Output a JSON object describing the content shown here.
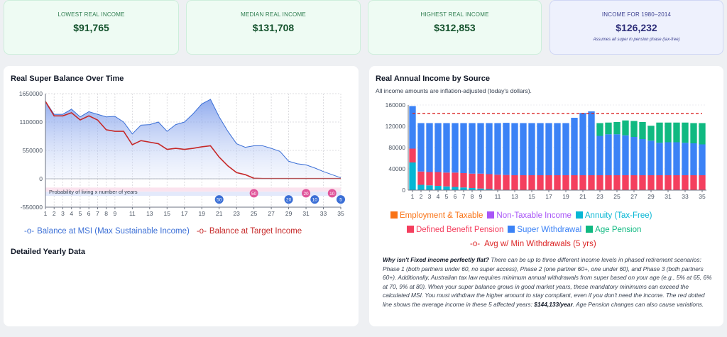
{
  "stats": [
    {
      "label": "LOWEST REAL INCOME",
      "value": "$91,765"
    },
    {
      "label": "MEDIAN REAL INCOME",
      "value": "$131,708"
    },
    {
      "label": "HIGHEST REAL INCOME",
      "value": "$312,853"
    },
    {
      "label": "INCOME FOR 1980–2014",
      "value": "$126,232",
      "note": "Assumes all super in pension phase (tax-free)"
    }
  ],
  "balance_panel": {
    "title": "Real Super Balance Over Time",
    "probability_label": "Probability of living x number of years",
    "legend_msi": "Balance at MSI (Max Sustainable Income)",
    "legend_target": "Balance at Target Income",
    "detailed_label": "Detailed Yearly Data"
  },
  "income_panel": {
    "title": "Real Annual Income by Source",
    "subtitle": "All income amounts are inflation-adjusted (today's dollars).",
    "legend": [
      {
        "name": "Employment & Taxable",
        "color": "#f97316"
      },
      {
        "name": "Non-Taxable Income",
        "color": "#a855f7"
      },
      {
        "name": "Annuity (Tax-Free)",
        "color": "#06b6d4"
      },
      {
        "name": "Defined Benefit Pension",
        "color": "#f43f5e"
      },
      {
        "name": "Super Withdrawal",
        "color": "#3b82f6"
      },
      {
        "name": "Age Pension",
        "color": "#10b981"
      }
    ],
    "avg_label": "Avg w/ Min Withdrawals (5 yrs)"
  },
  "explanation": {
    "heading": "Why isn't Fixed income perfectly flat?",
    "body1": " There can be up to three different income levels in phased retirement scenarios: Phase 1 (both partners under 60, no super access), Phase 2 (one partner 60+, one under 60), and Phase 3 (both partners 60+). Additionally, Australian tax law requires minimum annual withdrawals from super based on your age (e.g., 5% at 65, 6% at 70, 9% at 80). When your super balance grows in good market years, these mandatory minimums can exceed the calculated MSI. You must withdraw the higher amount to stay compliant, even if you don't need the income. The red dotted line shows the average income in these 5 affected years: ",
    "amount": "$144,133/year",
    "body2": ". Age Pension changes can also cause variations."
  },
  "chart_data": [
    {
      "type": "area",
      "title": "Real Super Balance Over Time",
      "x": [
        1,
        2,
        3,
        4,
        5,
        6,
        7,
        8,
        9,
        10,
        11,
        12,
        13,
        14,
        15,
        16,
        17,
        18,
        19,
        20,
        21,
        22,
        23,
        24,
        25,
        26,
        27,
        28,
        29,
        30,
        31,
        32,
        33,
        34,
        35
      ],
      "x_ticks": [
        1,
        2,
        3,
        4,
        5,
        6,
        7,
        8,
        9,
        11,
        13,
        15,
        17,
        19,
        21,
        23,
        25,
        27,
        29,
        31,
        33,
        35
      ],
      "ylim": [
        -550000,
        1650000
      ],
      "y_ticks": [
        1650000,
        1100000,
        550000,
        0,
        -550000
      ],
      "series": [
        {
          "name": "Balance at MSI (Max Sustainable Income)",
          "color": "#3b6fd6",
          "values": [
            1500000,
            1250000,
            1250000,
            1350000,
            1200000,
            1300000,
            1250000,
            1200000,
            1210000,
            1100000,
            870000,
            1040000,
            1050000,
            1100000,
            920000,
            1050000,
            1100000,
            1260000,
            1450000,
            1540000,
            1200000,
            920000,
            680000,
            610000,
            640000,
            640000,
            590000,
            530000,
            340000,
            290000,
            270000,
            210000,
            140000,
            80000,
            20000
          ]
        },
        {
          "name": "Balance at Target Income",
          "color": "#c62828",
          "values": [
            1500000,
            1220000,
            1220000,
            1280000,
            1140000,
            1220000,
            1140000,
            950000,
            920000,
            920000,
            660000,
            740000,
            710000,
            680000,
            570000,
            590000,
            570000,
            590000,
            620000,
            640000,
            420000,
            250000,
            120000,
            80000,
            10000,
            5000,
            5000,
            5000,
            5000,
            5000,
            5000,
            5000,
            5000,
            5000,
            5000
          ]
        }
      ],
      "probability_markers": [
        {
          "year": 21,
          "value": "50",
          "color": "#3b6fd6"
        },
        {
          "year": 25,
          "value": "50",
          "color": "#e0569b"
        },
        {
          "year": 29,
          "value": "20",
          "color": "#3b6fd6"
        },
        {
          "year": 31,
          "value": "20",
          "color": "#e0569b"
        },
        {
          "year": 32,
          "value": "10",
          "color": "#3b6fd6"
        },
        {
          "year": 34,
          "value": "10",
          "color": "#e0569b"
        },
        {
          "year": 35,
          "value": "5",
          "color": "#3b6fd6"
        }
      ]
    },
    {
      "type": "bar",
      "title": "Real Annual Income by Source",
      "categories": [
        1,
        2,
        3,
        4,
        5,
        6,
        7,
        8,
        9,
        10,
        11,
        12,
        13,
        14,
        15,
        16,
        17,
        18,
        19,
        20,
        21,
        22,
        23,
        24,
        25,
        26,
        27,
        28,
        29,
        30,
        31,
        32,
        33,
        34,
        35
      ],
      "x_ticks": [
        1,
        2,
        3,
        4,
        5,
        6,
        7,
        8,
        9,
        11,
        13,
        15,
        17,
        19,
        21,
        23,
        25,
        27,
        29,
        31,
        33,
        35
      ],
      "ylim": [
        0,
        160000
      ],
      "y_ticks": [
        160000,
        120000,
        80000,
        40000,
        0
      ],
      "avg_line": 144133,
      "series": [
        {
          "name": "Employment & Taxable",
          "color": "#f97316",
          "values": [
            0,
            0,
            0,
            0,
            0,
            0,
            0,
            0,
            0,
            0,
            0,
            0,
            0,
            0,
            0,
            0,
            0,
            0,
            0,
            0,
            0,
            0,
            0,
            0,
            0,
            0,
            0,
            0,
            0,
            0,
            0,
            0,
            0,
            0,
            0
          ]
        },
        {
          "name": "Non-Taxable Income",
          "color": "#a855f7",
          "values": [
            0,
            0,
            0,
            0,
            0,
            0,
            0,
            0,
            0,
            0,
            0,
            0,
            0,
            0,
            0,
            0,
            0,
            0,
            0,
            0,
            0,
            0,
            0,
            0,
            0,
            0,
            0,
            0,
            0,
            0,
            0,
            0,
            0,
            0,
            0
          ]
        },
        {
          "name": "Annuity (Tax-Free)",
          "color": "#06b6d4",
          "values": [
            52000,
            10000,
            9000,
            8000,
            7000,
            6000,
            5000,
            4000,
            3000,
            2000,
            1000,
            500,
            0,
            0,
            0,
            0,
            0,
            0,
            0,
            0,
            0,
            0,
            0,
            0,
            0,
            0,
            0,
            0,
            0,
            0,
            0,
            0,
            0,
            0,
            0
          ]
        },
        {
          "name": "Defined Benefit Pension",
          "color": "#f43f5e",
          "values": [
            26000,
            25000,
            25000,
            26000,
            26000,
            27000,
            27000,
            27000,
            28000,
            28000,
            28000,
            28000,
            28000,
            28000,
            28000,
            28000,
            28000,
            28000,
            28000,
            28000,
            28000,
            28000,
            28000,
            28000,
            28000,
            28000,
            28000,
            28000,
            28000,
            28000,
            28000,
            28000,
            28000,
            28000,
            28000
          ]
        },
        {
          "name": "Super Withdrawal",
          "color": "#3b82f6",
          "values": [
            80000,
            91000,
            92000,
            92000,
            93000,
            93000,
            94000,
            95000,
            95000,
            96000,
            97000,
            98000,
            98000,
            98000,
            98000,
            98000,
            98000,
            98000,
            98000,
            108000,
            117000,
            120000,
            74000,
            77000,
            77000,
            75000,
            72000,
            68000,
            65000,
            61000,
            62000,
            62000,
            61000,
            60000,
            58000
          ]
        },
        {
          "name": "Age Pension",
          "color": "#10b981",
          "values": [
            0,
            0,
            0,
            0,
            0,
            0,
            0,
            0,
            0,
            0,
            0,
            0,
            0,
            0,
            0,
            0,
            0,
            0,
            0,
            0,
            0,
            0,
            24000,
            22000,
            23000,
            28000,
            30000,
            32000,
            28000,
            38000,
            37000,
            37000,
            38000,
            38000,
            40000
          ]
        }
      ]
    }
  ]
}
